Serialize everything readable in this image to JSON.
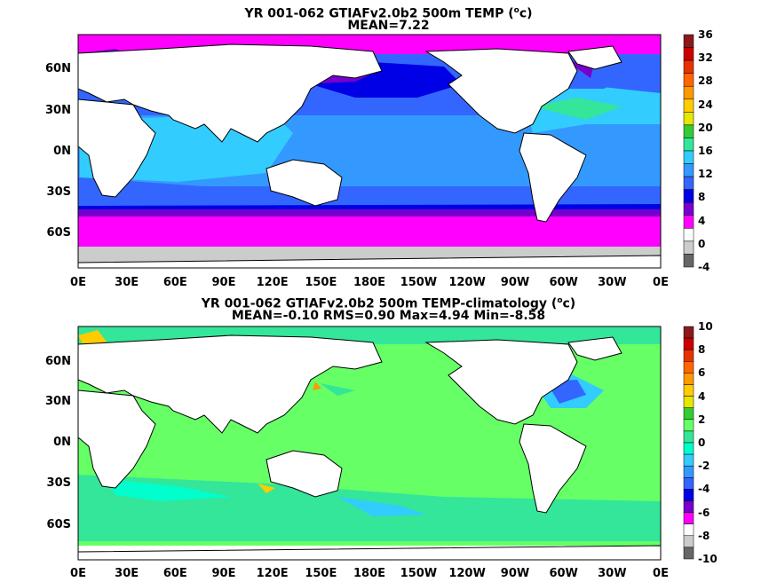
{
  "panels": [
    {
      "title_line1": "YR 001-062 GTIAFv2.0b2 500m TEMP (",
      "title_unit_sup": "o",
      "title_unit_after": "c)",
      "title_line2": "MEAN=7.22",
      "colorbar_labels": [
        "36",
        "32",
        "28",
        "24",
        "20",
        "16",
        "12",
        "8",
        "4",
        "0",
        "-4"
      ],
      "colorbar_colors": [
        "#8b1a1a",
        "#cc0000",
        "#e83300",
        "#ff6600",
        "#ff9900",
        "#ffcc00",
        "#e6e600",
        "#33cc33",
        "#33e699",
        "#33ccff",
        "#3399ff",
        "#3366ff",
        "#0000e6",
        "#7700cc",
        "#ff00ff",
        "#ffffff",
        "#cccccc",
        "#666666"
      ]
    },
    {
      "title_line1": "YR 001-062 GTIAFv2.0b2 500m TEMP-climatology (",
      "title_unit_sup": "o",
      "title_unit_after": "c)",
      "title_line2": "MEAN=-0.10   RMS=0.90   Max=4.94   Min=-8.58",
      "colorbar_labels": [
        "10",
        "8",
        "6",
        "4",
        "2",
        "0",
        "-2",
        "-4",
        "-6",
        "-8",
        "-10"
      ],
      "colorbar_colors": [
        "#8b1a1a",
        "#cc0000",
        "#e83300",
        "#ff6600",
        "#ff9900",
        "#ffcc00",
        "#e6e600",
        "#33cc33",
        "#66ff66",
        "#33e699",
        "#00ffcc",
        "#33ccff",
        "#3399ff",
        "#3366ff",
        "#0000e6",
        "#7700cc",
        "#ff00ff",
        "#ffffff",
        "#cccccc",
        "#666666"
      ]
    }
  ],
  "x_ticks": [
    "0E",
    "30E",
    "60E",
    "90E",
    "120E",
    "150E",
    "180E",
    "150W",
    "120W",
    "90W",
    "60W",
    "30W",
    "0E"
  ],
  "y_ticks": [
    "60N",
    "30N",
    "0N",
    "30S",
    "60S"
  ]
}
